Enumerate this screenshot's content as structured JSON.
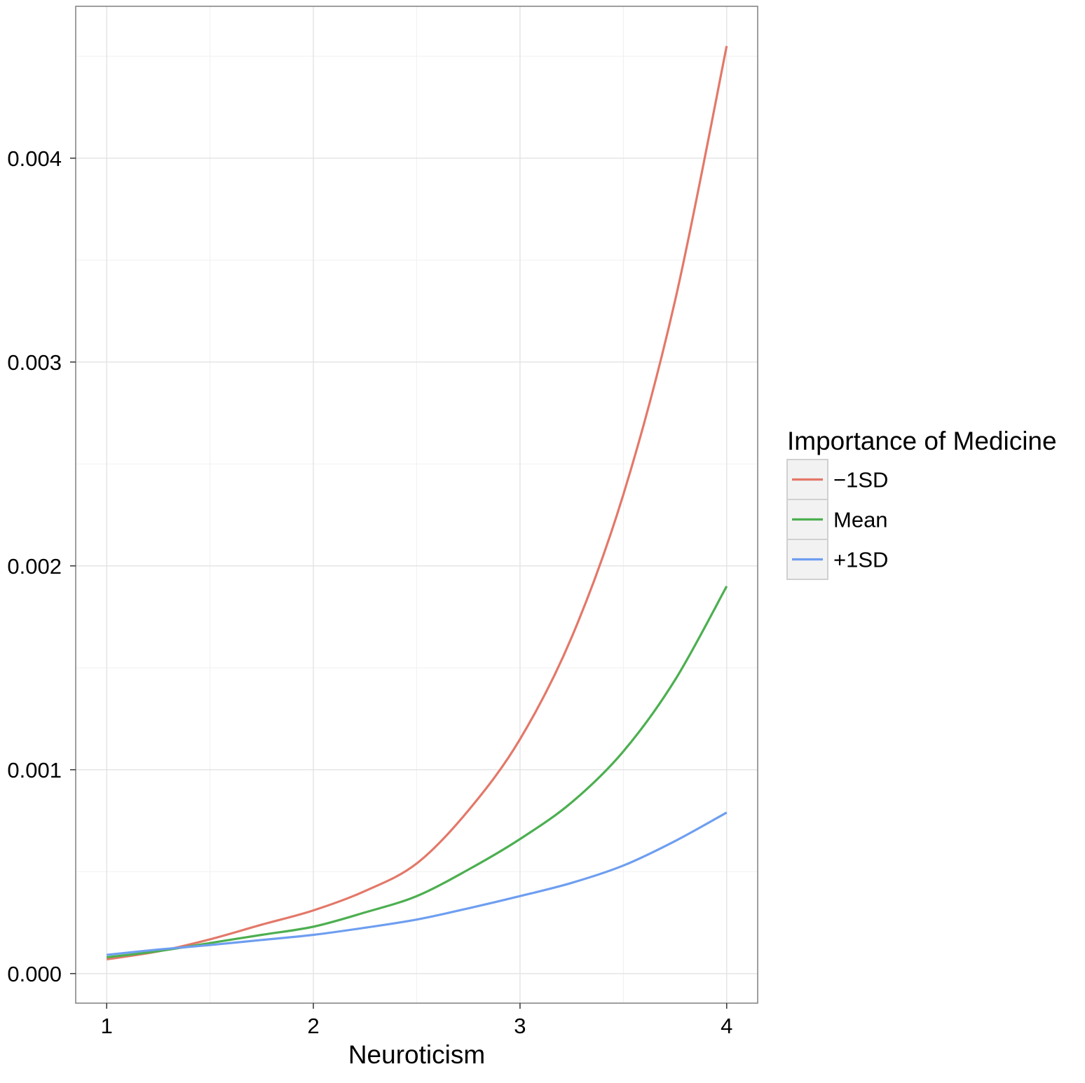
{
  "chart_data": {
    "type": "line",
    "title": "",
    "xlabel": "Neuroticism",
    "ylabel": "",
    "xlim": [
      0.85,
      4.15
    ],
    "ylim": [
      -0.000145,
      0.004745
    ],
    "x_ticks": [
      1,
      2,
      3,
      4
    ],
    "x_tick_labels": [
      "1",
      "2",
      "3",
      "4"
    ],
    "y_ticks": [
      0.0,
      0.001,
      0.002,
      0.003,
      0.004
    ],
    "y_tick_labels": [
      "0.000",
      "0.001",
      "0.002",
      "0.003",
      "0.004"
    ],
    "grid": true,
    "legend": {
      "title": "Importance of Medicine",
      "position": "right"
    },
    "series": [
      {
        "name": "−1SD",
        "color": "#e37869",
        "x": [
          1,
          1.25,
          1.5,
          1.75,
          2,
          2.25,
          2.5,
          2.75,
          3,
          3.25,
          3.5,
          3.75,
          4
        ],
        "values": [
          7e-05,
          0.000109,
          0.000168,
          0.00024,
          0.00031,
          0.000405,
          0.00054,
          0.0008,
          0.00115,
          0.00165,
          0.00235,
          0.0033,
          0.00455
        ]
      },
      {
        "name": "Mean",
        "color": "#4caf50",
        "x": [
          1,
          1.25,
          1.5,
          1.75,
          2,
          2.25,
          2.5,
          2.75,
          3,
          3.25,
          3.5,
          3.75,
          4
        ],
        "values": [
          8e-05,
          0.00011,
          0.00015,
          0.00019,
          0.00023,
          0.0003,
          0.00038,
          0.00051,
          0.00066,
          0.00084,
          0.00109,
          0.00144,
          0.0019
        ]
      },
      {
        "name": "+1SD",
        "color": "#6e9ef0",
        "x": [
          1,
          1.25,
          1.5,
          1.75,
          2,
          2.25,
          2.5,
          2.75,
          3,
          3.25,
          3.5,
          3.75,
          4
        ],
        "values": [
          9.2e-05,
          0.000118,
          0.00014,
          0.000165,
          0.00019,
          0.000225,
          0.000265,
          0.00032,
          0.00038,
          0.000445,
          0.00053,
          0.00065,
          0.00079
        ]
      }
    ]
  }
}
